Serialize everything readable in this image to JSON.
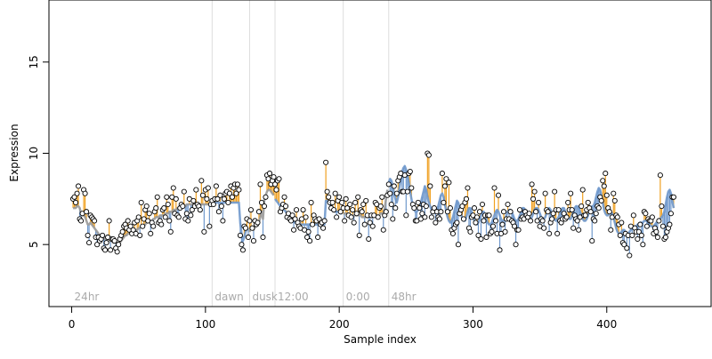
{
  "chart_data": {
    "type": "scatter",
    "title": "",
    "xlabel": "Sample index",
    "ylabel": "Expression",
    "xlim": [
      -17,
      478
    ],
    "ylim": [
      1.6,
      18.4
    ],
    "x_ticks": [
      0,
      100,
      200,
      300,
      400
    ],
    "y_ticks": [
      5,
      10,
      15
    ],
    "grid": false,
    "segments": [
      {
        "label": "24hr",
        "start": 0
      },
      {
        "label": "dawn",
        "start": 105
      },
      {
        "label": "dusk",
        "start": 133
      },
      {
        "label": "12:00",
        "start": 152
      },
      {
        "label": "0:00",
        "start": 203
      },
      {
        "label": "48hr",
        "start": 237
      }
    ],
    "series": [
      {
        "fitted_color": "#999999",
        "fitted_color_alt": "#6f98cc",
        "residual_positive_color": "#f0a020",
        "residual_negative_color": "#6f98cc",
        "point_fill": "#ffffff",
        "point_stroke": "#000000",
        "x_start": 1,
        "observed": [
          7.5,
          7.6,
          7.3,
          7.8,
          8.2,
          6.4,
          6.3,
          6.7,
          8.0,
          7.8,
          6.8,
          5.5,
          5.1,
          6.6,
          6.5,
          6.4,
          6.3,
          5.4,
          5.0,
          5.4,
          5.2,
          5.3,
          5.5,
          4.8,
          4.7,
          5.1,
          5.4,
          6.3,
          4.7,
          5.3,
          5.3,
          5.2,
          4.8,
          4.6,
          5.0,
          5.3,
          5.5,
          5.7,
          6.0,
          6.1,
          5.9,
          6.3,
          5.8,
          6.0,
          5.6,
          5.8,
          6.2,
          5.6,
          6.3,
          6.5,
          5.5,
          7.3,
          6.0,
          6.4,
          6.9,
          7.1,
          6.3,
          6.7,
          5.6,
          6.2,
          6.0,
          6.8,
          7.0,
          7.6,
          6.2,
          6.3,
          6.1,
          6.9,
          7.0,
          6.5,
          7.6,
          7.2,
          6.3,
          5.7,
          7.6,
          8.1,
          6.7,
          7.5,
          6.6,
          6.5,
          7.0,
          7.2,
          7.1,
          7.9,
          6.4,
          6.7,
          6.3,
          7.5,
          6.6,
          6.9,
          7.4,
          7.1,
          8.0,
          7.2,
          7.1,
          6.9,
          8.5,
          7.7,
          5.7,
          8.0,
          7.5,
          8.1,
          6.0,
          7.2,
          7.4,
          7.2,
          7.5,
          8.2,
          7.5,
          6.8,
          7.7,
          7.1,
          6.3,
          7.5,
          7.8,
          7.9,
          7.3,
          7.8,
          8.2,
          7.6,
          8.1,
          8.3,
          7.8,
          8.3,
          8.0,
          5.5,
          5.0,
          4.7,
          6.0,
          5.9,
          6.4,
          5.4,
          6.3,
          6.9,
          5.9,
          5.2,
          6.3,
          6.1,
          6.2,
          6.8,
          8.3,
          7.3,
          5.4,
          7.1,
          7.6,
          8.8,
          8.6,
          8.9,
          8.3,
          8.5,
          8.7,
          8.3,
          8.0,
          8.5,
          8.6,
          6.8,
          7.0,
          7.2,
          7.6,
          7.1,
          6.5,
          6.7,
          6.4,
          6.3,
          6.6,
          5.8,
          6.4,
          6.9,
          6.2,
          6.0,
          5.9,
          6.4,
          6.9,
          5.8,
          6.5,
          5.4,
          5.7,
          5.2,
          7.3,
          6.1,
          6.6,
          6.4,
          6.3,
          5.4,
          6.4,
          6.1,
          6.2,
          5.9,
          6.3,
          9.5,
          7.9,
          7.6,
          7.3,
          7.0,
          7.3,
          6.9,
          7.8,
          6.5,
          7.4,
          7.6,
          6.8,
          7.3,
          7.0,
          6.3,
          7.5,
          7.0,
          6.6,
          7.2,
          6.5,
          6.9,
          6.2,
          7.3,
          6.7,
          7.6,
          5.5,
          6.9,
          6.8,
          7.2,
          6.1,
          7.4,
          6.6,
          5.3,
          6.2,
          6.6,
          6.0,
          6.6,
          7.3,
          7.2,
          6.5,
          7.0,
          7.1,
          7.6,
          5.8,
          6.6,
          6.8,
          7.7,
          8.3,
          7.8,
          7.2,
          6.4,
          8.2,
          7.0,
          7.8,
          8.5,
          8.7,
          8.9,
          7.9,
          7.9,
          8.8,
          6.6,
          7.9,
          8.9,
          9.0,
          8.1,
          7.2,
          7.0,
          6.3,
          6.3,
          7.3,
          7.0,
          6.4,
          6.7,
          7.2,
          6.5,
          7.1,
          10.0,
          9.9,
          8.2,
          6.5,
          6.8,
          7.0,
          6.2,
          6.8,
          6.5,
          6.4,
          6.8,
          8.9,
          7.3,
          8.2,
          8.6,
          6.8,
          8.4,
          7.0,
          5.8,
          5.6,
          5.9,
          6.1,
          6.2,
          5.0,
          6.7,
          6.9,
          7.1,
          6.4,
          7.3,
          7.5,
          8.1,
          5.9,
          5.7,
          6.5,
          6.6,
          7.0,
          6.2,
          6.5,
          5.5,
          6.8,
          5.3,
          7.2,
          6.3,
          6.6,
          5.4,
          6.6,
          6.6,
          5.6,
          5.7,
          6.0,
          8.1,
          6.3,
          5.6,
          7.7,
          4.7,
          5.6,
          6.1,
          6.8,
          5.7,
          6.4,
          7.2,
          6.4,
          6.8,
          6.3,
          6.2,
          6.0,
          5.0,
          5.8,
          5.8,
          6.9,
          6.4,
          6.5,
          6.4,
          6.8,
          6.6,
          6.5,
          6.7,
          6.3,
          8.3,
          7.5,
          7.9,
          6.8,
          6.3,
          7.3,
          6.0,
          6.4,
          6.3,
          5.9,
          7.8,
          6.9,
          6.8,
          5.6,
          6.2,
          6.4,
          6.7,
          7.9,
          6.9,
          5.6,
          6.9,
          6.3,
          6.2,
          6.4,
          6.7,
          6.4,
          6.5,
          7.3,
          6.9,
          7.8,
          6.9,
          5.9,
          6.6,
          6.4,
          6.3,
          5.8,
          6.5,
          7.1,
          8.0,
          6.6,
          6.6,
          6.9,
          7.3,
          7.0,
          6.8,
          5.2,
          6.4,
          6.3,
          6.7,
          7.1,
          7.0,
          7.6,
          7.4,
          8.5,
          8.2,
          8.9,
          7.7,
          7.0,
          6.8,
          5.8,
          6.5,
          7.8,
          7.4,
          6.6,
          6.5,
          6.1,
          5.5,
          6.2,
          5.1,
          5.0,
          5.6,
          4.8,
          5.5,
          4.4,
          6.0,
          5.5,
          6.6,
          5.9,
          5.7,
          5.3,
          5.7,
          6.1,
          5.5,
          5.0,
          6.8,
          6.7,
          6.0,
          6.4,
          6.3,
          6.3,
          6.5,
          5.6,
          5.9,
          5.7,
          5.4,
          6.3,
          8.8,
          7.1,
          6.0,
          5.3,
          5.4,
          5.7,
          5.9,
          6.1,
          6.7,
          7.6,
          7.6,
          7.8,
          7.7,
          6.4
        ],
        "fitted": [
          7.0,
          7.0,
          7.0,
          7.1,
          7.1,
          7.0,
          6.7,
          6.6,
          6.6,
          6.5,
          6.3,
          6.1,
          6.1,
          6.2,
          6.1,
          6.0,
          5.9,
          5.8,
          5.7,
          5.6,
          5.5,
          5.4,
          5.4,
          5.4,
          5.3,
          5.3,
          5.3,
          5.2,
          5.2,
          5.2,
          5.1,
          5.1,
          5.1,
          5.1,
          5.1,
          5.1,
          5.2,
          5.3,
          5.4,
          5.5,
          5.5,
          5.6,
          5.6,
          5.7,
          5.7,
          5.7,
          5.7,
          5.8,
          5.8,
          5.9,
          5.9,
          6.0,
          6.0,
          6.0,
          6.1,
          6.2,
          6.2,
          6.3,
          6.3,
          6.3,
          6.4,
          6.4,
          6.5,
          6.5,
          6.5,
          6.6,
          6.6,
          6.6,
          6.6,
          6.7,
          6.7,
          6.7,
          6.8,
          6.8,
          6.8,
          6.9,
          6.9,
          6.9,
          7.0,
          7.0,
          7.0,
          7.0,
          7.1,
          7.1,
          7.1,
          7.2,
          7.2,
          7.2,
          7.2,
          7.2,
          7.2,
          7.2,
          7.2,
          7.2,
          7.2,
          7.2,
          7.2,
          7.2,
          7.2,
          7.2,
          7.2,
          7.2,
          7.2,
          7.3,
          7.3,
          7.3,
          7.3,
          7.3,
          7.3,
          7.3,
          7.3,
          7.3,
          7.3,
          7.3,
          7.3,
          7.3,
          7.3,
          7.3,
          7.3,
          7.3,
          7.3,
          7.3,
          7.3,
          7.3,
          7.3,
          6.2,
          5.6,
          5.2,
          5.4,
          5.7,
          5.9,
          5.8,
          5.7,
          5.9,
          6.0,
          5.8,
          6.0,
          6.0,
          6.1,
          6.2,
          6.5,
          6.8,
          6.4,
          7.4,
          7.7,
          7.9,
          8.0,
          8.0,
          7.9,
          7.8,
          7.7,
          7.5,
          7.4,
          7.3,
          7.2,
          7.1,
          7.0,
          6.9,
          6.9,
          6.8,
          6.7,
          6.6,
          6.5,
          6.5,
          6.4,
          6.3,
          6.2,
          6.2,
          6.1,
          6.1,
          6.1,
          6.1,
          6.1,
          6.1,
          6.1,
          6.1,
          6.1,
          6.1,
          6.1,
          6.1,
          6.1,
          6.1,
          6.1,
          6.1,
          6.1,
          6.1,
          6.1,
          6.1,
          6.1,
          7.4,
          7.4,
          7.3,
          7.2,
          7.1,
          7.0,
          6.9,
          6.8,
          6.8,
          6.8,
          6.8,
          6.7,
          6.7,
          6.7,
          6.7,
          6.7,
          6.7,
          6.7,
          6.6,
          6.6,
          6.6,
          6.6,
          6.6,
          6.6,
          6.6,
          6.6,
          6.6,
          6.5,
          6.5,
          6.5,
          6.5,
          6.5,
          6.5,
          6.5,
          6.5,
          6.5,
          6.5,
          6.6,
          6.6,
          6.6,
          6.6,
          6.7,
          6.7,
          6.7,
          7.0,
          7.5,
          8.0,
          8.4,
          8.6,
          8.5,
          8.2,
          7.8,
          7.5,
          7.3,
          7.6,
          8.1,
          8.6,
          9.0,
          9.2,
          9.3,
          9.1,
          8.8,
          8.4,
          7.9,
          7.5,
          7.1,
          6.9,
          6.8,
          6.8,
          6.9,
          7.0,
          7.3,
          7.6,
          7.9,
          8.2,
          8.0,
          7.6,
          7.3,
          7.1,
          6.9,
          6.8,
          6.8,
          6.8,
          6.9,
          7.1,
          7.4,
          7.7,
          7.8,
          7.6,
          7.2,
          6.8,
          6.5,
          6.3,
          6.2,
          6.3,
          6.5,
          6.8,
          7.1,
          7.4,
          7.3,
          7.0,
          6.7,
          6.4,
          6.3,
          6.3,
          6.5,
          6.8,
          7.0,
          7.0,
          6.8,
          6.5,
          6.3,
          6.2,
          6.1,
          6.2,
          6.4,
          6.6,
          6.8,
          6.8,
          6.6,
          6.4,
          6.2,
          6.1,
          6.1,
          6.2,
          6.4,
          6.6,
          6.8,
          6.9,
          6.8,
          6.6,
          6.4,
          6.3,
          6.3,
          6.4,
          6.6,
          6.8,
          6.9,
          6.9,
          6.8,
          6.6,
          6.4,
          6.3,
          6.3,
          6.4,
          6.6,
          6.8,
          7.0,
          7.0,
          6.9,
          6.7,
          6.5,
          6.4,
          6.4,
          6.5,
          6.7,
          6.9,
          7.0,
          7.0,
          6.9,
          6.7,
          6.5,
          6.4,
          6.4,
          6.5,
          6.7,
          6.9,
          7.0,
          6.9,
          6.7,
          6.5,
          6.4,
          6.3,
          6.4,
          6.5,
          6.7,
          6.9,
          7.0,
          7.0,
          6.8,
          6.6,
          6.5,
          6.4,
          6.4,
          6.6,
          6.8,
          7.0,
          7.1,
          7.1,
          7.0,
          6.8,
          6.6,
          6.4,
          6.3,
          6.3,
          6.4,
          6.6,
          6.8,
          7.0,
          7.1,
          7.1,
          7.3,
          7.6,
          7.9,
          8.1,
          8.0,
          7.7,
          7.3,
          6.9,
          6.7,
          6.6,
          6.6,
          6.7,
          6.8,
          6.7,
          6.5,
          6.2,
          5.9,
          5.7,
          5.6,
          5.6,
          5.7,
          5.8,
          5.8,
          5.7,
          5.6,
          5.6,
          5.7,
          5.8,
          5.9,
          6.0,
          6.0,
          6.0,
          6.1,
          6.1,
          6.2,
          6.2,
          6.2,
          6.3,
          6.3,
          6.3,
          6.2,
          6.1,
          6.0,
          6.0,
          6.0,
          6.1,
          6.2,
          6.2,
          6.3,
          6.4,
          6.5,
          6.6,
          6.8,
          7.2,
          7.6,
          7.9,
          8.0,
          7.8,
          7.4,
          7.0
        ]
      }
    ]
  }
}
